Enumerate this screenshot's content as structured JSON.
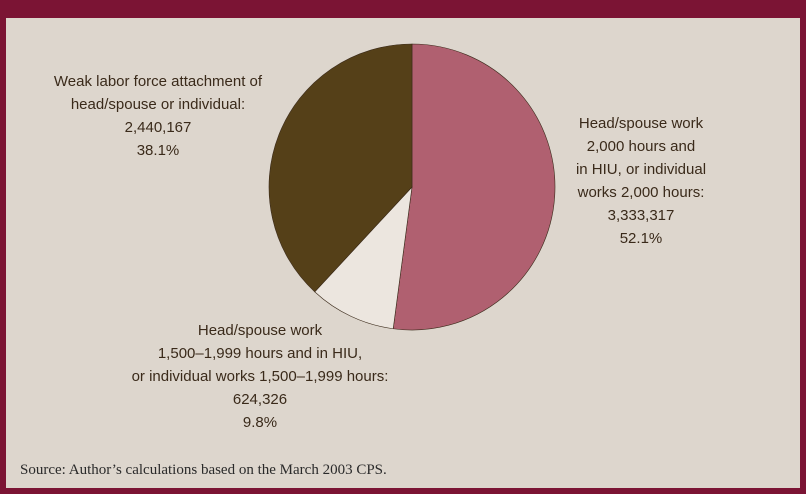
{
  "chart_data": {
    "type": "pie",
    "title": "",
    "slices": [
      {
        "lines": [
          "Head/spouse work",
          "2,000 hours and",
          "in HIU, or individual",
          "works 2,000 hours:"
        ],
        "count": "3,333,317",
        "percent_label": "52.1%",
        "value": 52.1,
        "color": "#b06070"
      },
      {
        "lines": [
          "Head/spouse work",
          "1,500–1,999 hours and in HIU,",
          "or individual works 1,500–1,999 hours:"
        ],
        "count": "624,326",
        "percent_label": "9.8%",
        "value": 9.8,
        "color": "#ece6df"
      },
      {
        "lines": [
          "Weak labor force attachment of",
          "head/spouse or individual:"
        ],
        "count": "2,440,167",
        "percent_label": "38.1%",
        "value": 38.1,
        "color": "#554018"
      }
    ]
  },
  "source": "Source: Author’s calculations based on the March 2003 CPS."
}
